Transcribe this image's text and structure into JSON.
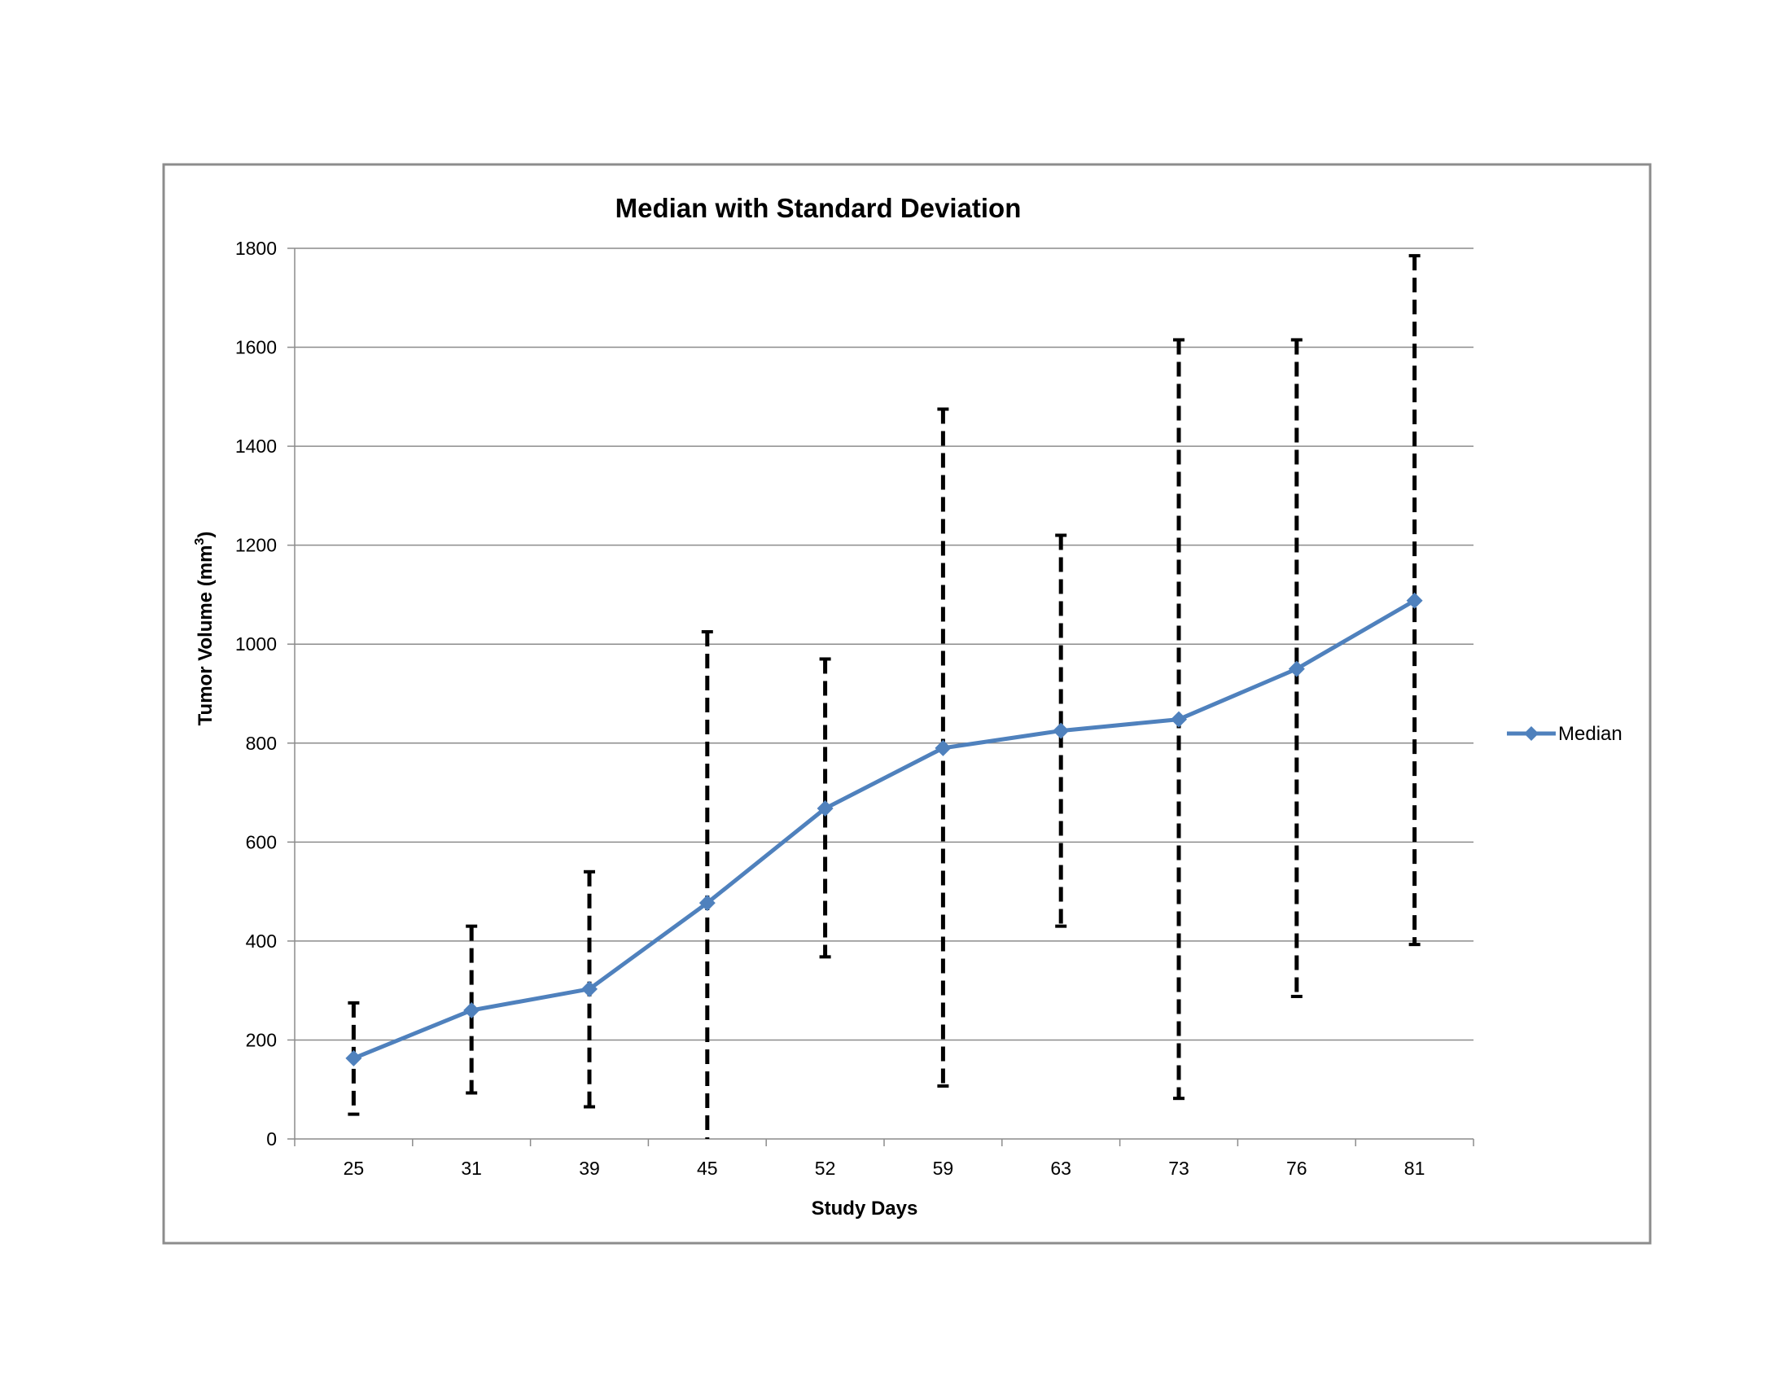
{
  "chart_data": {
    "type": "line",
    "title": "Median with Standard Deviation",
    "xlabel": "Study Days",
    "ylabel_main": "Tumor Volume (mm",
    "ylabel_sup": "3",
    "ylabel_end": ")",
    "categories": [
      "25",
      "31",
      "39",
      "45",
      "52",
      "59",
      "63",
      "73",
      "76",
      "81"
    ],
    "y_ticks": [
      "0",
      "200",
      "400",
      "600",
      "800",
      "1000",
      "1200",
      "1400",
      "1600",
      "1800"
    ],
    "ylim": [
      0,
      1800
    ],
    "grid": true,
    "legend_position": "right",
    "series": [
      {
        "name": "Median",
        "color": "#4F81BD",
        "marker": "diamond",
        "values": [
          163,
          260,
          303,
          477,
          668,
          790,
          825,
          848,
          950,
          1088
        ],
        "error_low": [
          50,
          93,
          65,
          0,
          368,
          107,
          430,
          82,
          288,
          393
        ],
        "error_high": [
          275,
          430,
          540,
          1025,
          970,
          1475,
          1220,
          1615,
          1615,
          1785
        ]
      }
    ],
    "error_bar_style": "dashed-black"
  }
}
